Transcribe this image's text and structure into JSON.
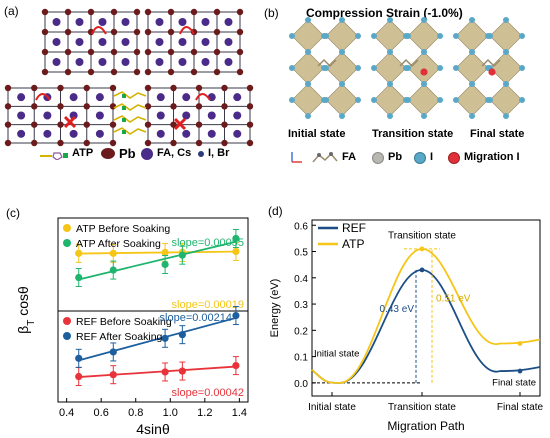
{
  "panel_a": {
    "label": "(a)",
    "legend": {
      "atp": "ATP",
      "pb": "Pb",
      "fa_cs": "FA, Cs",
      "i_br": "I, Br"
    },
    "colors": {
      "pb": "#6b1b1b",
      "fa": "#4a2b8a",
      "i": "#2b3a7a",
      "atp": "#d4b400",
      "bond": "#3a3a4a",
      "cross": "#e02020",
      "green": "#1aa64a"
    }
  },
  "panel_b": {
    "label": "(b)",
    "title": "Compression Strain (-1.0%)",
    "states": [
      "Initial state",
      "Transition state",
      "Final state"
    ],
    "legend": {
      "fa": "FA",
      "pb": "Pb",
      "i": "I",
      "migration": "Migration I"
    },
    "colors": {
      "octa": "#c9b98a",
      "i": "#5aa8c8",
      "migration": "#e0303a"
    }
  },
  "panel_c": {
    "label": "(c)",
    "ylabel": "β",
    "ylabel_sub": "T",
    "ylabel_rest": " cosθ",
    "xlabel": "4sinθ",
    "xticks": [
      "0.4",
      "0.6",
      "0.8",
      "1.0",
      "1.2",
      "1.4"
    ]
  },
  "panel_d": {
    "label": "(d)",
    "ylabel": "Energy (eV)",
    "xlabel": "Migration Path",
    "xticks": [
      "Initial state",
      "Transition state",
      "Final state"
    ],
    "annotations": {
      "initial": "Initial state",
      "transition": "Transition state",
      "final": "Final state",
      "ref_e": "0.43 eV",
      "atp_e": "0.51 eV"
    }
  },
  "chart_data": [
    {
      "type": "scatter",
      "panel": "c-top",
      "xlim": [
        0.35,
        1.45
      ],
      "series": [
        {
          "name": "ATP Before Soaking",
          "color": "#f5c518",
          "x": [
            0.47,
            0.67,
            0.97,
            1.07,
            1.38
          ],
          "y": [
            0.62,
            0.62,
            0.63,
            0.63,
            0.64
          ],
          "slope": "slope=0.00019"
        },
        {
          "name": "ATP After Soaking",
          "color": "#1fb56e",
          "x": [
            0.47,
            0.67,
            0.97,
            1.07,
            1.38
          ],
          "y": [
            0.36,
            0.44,
            0.5,
            0.6,
            0.78
          ],
          "slope": "slope=0.00055"
        }
      ]
    },
    {
      "type": "scatter",
      "panel": "c-bottom",
      "xlim": [
        0.35,
        1.45
      ],
      "series": [
        {
          "name": "REF Before Soaking",
          "color": "#e8333a",
          "x": [
            0.47,
            0.67,
            0.97,
            1.07,
            1.38
          ],
          "y": [
            0.28,
            0.3,
            0.33,
            0.34,
            0.4
          ],
          "slope": "slope=0.00042"
        },
        {
          "name": "REF After Soaking",
          "color": "#1d5f9e",
          "x": [
            0.47,
            0.67,
            0.97,
            1.07,
            1.38
          ],
          "y": [
            0.48,
            0.55,
            0.7,
            0.74,
            0.95
          ],
          "slope": "slope=0.00214"
        }
      ]
    },
    {
      "type": "line",
      "panel": "d",
      "ylim": [
        -0.05,
        0.62
      ],
      "yticks": [
        0.0,
        0.1,
        0.2,
        0.3,
        0.4,
        0.5,
        0.6
      ],
      "series": [
        {
          "name": "REF",
          "color": "#1d4f86",
          "barrier": 0.43,
          "final": 0.045
        },
        {
          "name": "ATP",
          "color": "#f5c518",
          "barrier": 0.51,
          "final": 0.15
        }
      ]
    }
  ]
}
